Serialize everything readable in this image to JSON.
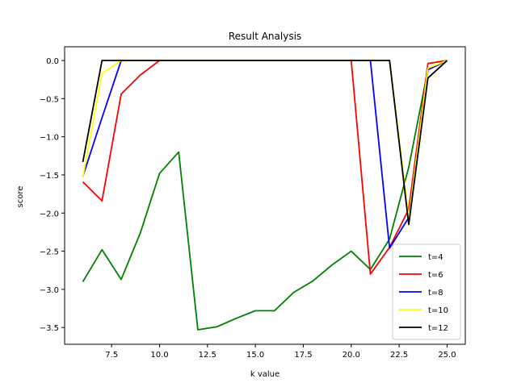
{
  "chart_data": {
    "type": "line",
    "title": "Result Analysis",
    "xlabel": "k value",
    "ylabel": "score",
    "xlim": [
      5.05,
      25.95
    ],
    "ylim": [
      -3.72,
      0.18
    ],
    "x_ticks": [
      7.5,
      10.0,
      12.5,
      15.0,
      17.5,
      20.0,
      22.5,
      25.0
    ],
    "x_tick_labels": [
      "7.5",
      "10.0",
      "12.5",
      "15.0",
      "17.5",
      "20.0",
      "22.5",
      "25.0"
    ],
    "y_ticks": [
      0.0,
      -0.5,
      -1.0,
      -1.5,
      -2.0,
      -2.5,
      -3.0,
      -3.5
    ],
    "y_tick_labels": [
      "0.0",
      "−0.5",
      "−1.0",
      "−1.5",
      "−2.0",
      "−2.5",
      "−3.0",
      "−3.5"
    ],
    "grid": false,
    "legend_position": "lower-right",
    "x": [
      6,
      7,
      8,
      9,
      10,
      11,
      12,
      13,
      14,
      15,
      16,
      17,
      18,
      19,
      20,
      21,
      22,
      23,
      24,
      25
    ],
    "series": [
      {
        "name": "t=4",
        "color": "#008000",
        "values": [
          -2.9,
          -2.48,
          -2.87,
          -2.26,
          -1.48,
          -1.2,
          -3.53,
          -3.49,
          -3.38,
          -3.28,
          -3.28,
          -3.04,
          -2.89,
          -2.68,
          -2.5,
          -2.74,
          -2.34,
          -1.4,
          -0.12,
          0.0
        ]
      },
      {
        "name": "t=6",
        "color": "#ff0000",
        "values": [
          -1.59,
          -1.84,
          -0.44,
          -0.19,
          0.0,
          0.0,
          0.0,
          0.0,
          0.0,
          0.0,
          0.0,
          0.0,
          0.0,
          0.0,
          0.0,
          -2.8,
          -2.45,
          -1.95,
          -0.04,
          0.0
        ]
      },
      {
        "name": "t=8",
        "color": "#0000ff",
        "values": [
          -1.52,
          -0.75,
          0.0,
          0.0,
          0.0,
          0.0,
          0.0,
          0.0,
          0.0,
          0.0,
          0.0,
          0.0,
          0.0,
          0.0,
          0.0,
          0.0,
          -2.46,
          -2.06,
          -0.12,
          0.0
        ]
      },
      {
        "name": "t=10",
        "color": "#ffff00",
        "values": [
          -1.53,
          -0.17,
          0.0,
          0.0,
          0.0,
          0.0,
          0.0,
          0.0,
          0.0,
          0.0,
          0.0,
          0.0,
          0.0,
          0.0,
          0.0,
          0.0,
          0.0,
          -2.07,
          -0.1,
          0.0
        ]
      },
      {
        "name": "t=12",
        "color": "#000000",
        "values": [
          -1.33,
          0.0,
          0.0,
          0.0,
          0.0,
          0.0,
          0.0,
          0.0,
          0.0,
          0.0,
          0.0,
          0.0,
          0.0,
          0.0,
          0.0,
          0.0,
          0.0,
          -2.15,
          -0.23,
          0.0
        ]
      }
    ]
  }
}
